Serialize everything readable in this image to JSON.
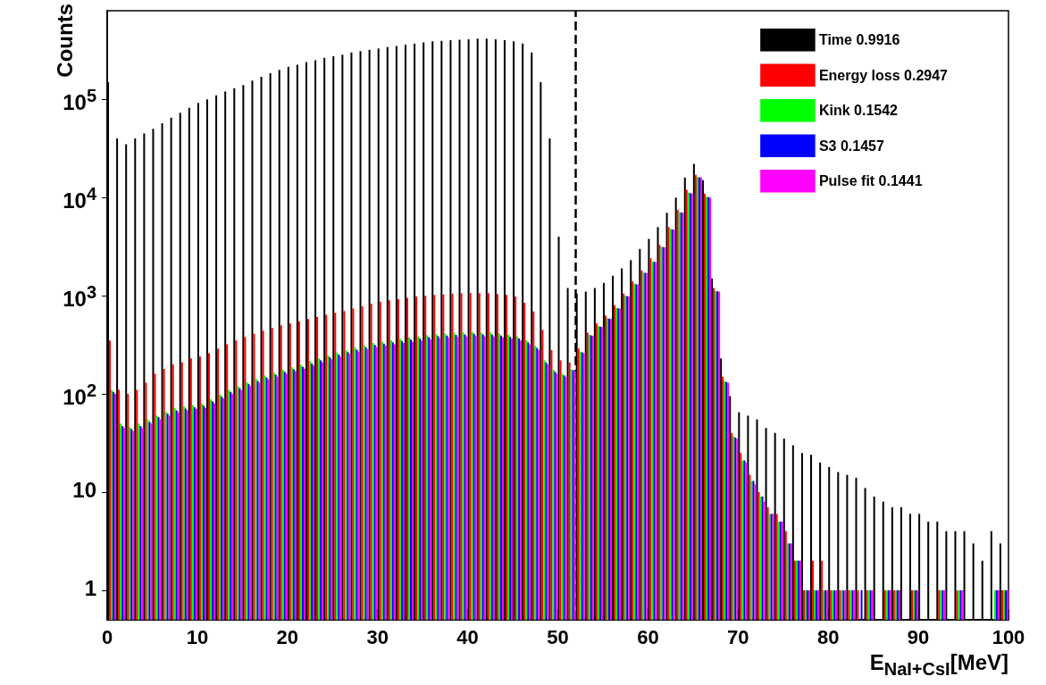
{
  "chart_data": {
    "type": "histogram",
    "xlabel": "E$_{NaI+CsI}$[MeV]",
    "ylabel": "Counts",
    "bins": [
      0,
      1,
      2,
      3,
      4,
      5,
      6,
      7,
      8,
      9,
      10,
      11,
      12,
      13,
      14,
      15,
      16,
      17,
      18,
      19,
      20,
      21,
      22,
      23,
      24,
      25,
      26,
      27,
      28,
      29,
      30,
      31,
      32,
      33,
      34,
      35,
      36,
      37,
      38,
      39,
      40,
      41,
      42,
      43,
      44,
      45,
      46,
      47,
      48,
      49,
      50,
      51,
      52,
      53,
      54,
      55,
      56,
      57,
      58,
      59,
      60,
      61,
      62,
      63,
      64,
      65,
      66,
      67,
      68,
      69,
      70,
      71,
      72,
      73,
      74,
      75,
      76,
      77,
      78,
      79,
      80,
      81,
      82,
      83,
      84,
      85,
      86,
      87,
      88,
      89,
      90,
      91,
      92,
      93,
      94,
      95,
      96,
      97,
      98,
      99,
      100
    ],
    "series": [
      {
        "name": "Time 0.9916",
        "color": "#000000",
        "values": [
          150000,
          40000,
          35000,
          40000,
          45000,
          50000,
          57000,
          65000,
          73000,
          82000,
          92000,
          100000,
          110000,
          120000,
          130000,
          140000,
          155000,
          170000,
          185000,
          200000,
          215000,
          225000,
          240000,
          250000,
          265000,
          275000,
          285000,
          300000,
          310000,
          320000,
          330000,
          340000,
          350000,
          360000,
          370000,
          380000,
          390000,
          395000,
          400000,
          405000,
          410000,
          415000,
          415000,
          410000,
          400000,
          390000,
          370000,
          300000,
          150000,
          40000,
          4000,
          1200,
          1050,
          1100,
          1200,
          1350,
          1600,
          1900,
          2300,
          3000,
          3800,
          5000,
          7000,
          10000,
          16000,
          22000,
          15000,
          1500,
          230,
          95,
          65,
          60,
          55,
          45,
          40,
          35,
          30,
          25,
          24,
          20,
          18,
          16,
          15,
          14,
          11,
          9,
          8,
          7,
          7,
          6,
          6,
          5,
          5,
          4,
          4,
          4,
          3,
          2,
          4,
          3
        ]
      },
      {
        "name": "Energy loss 0.2947",
        "color": "#ff0000",
        "values": [
          350,
          110,
          100,
          110,
          130,
          160,
          180,
          200,
          210,
          230,
          240,
          260,
          290,
          320,
          350,
          380,
          410,
          440,
          470,
          500,
          520,
          550,
          580,
          610,
          640,
          670,
          700,
          740,
          780,
          830,
          870,
          900,
          920,
          950,
          980,
          1000,
          1020,
          1030,
          1050,
          1060,
          1070,
          1060,
          1060,
          1040,
          1020,
          980,
          850,
          690,
          450,
          280,
          220,
          210,
          290,
          420,
          520,
          630,
          800,
          1050,
          1400,
          1800,
          2400,
          3300,
          5000,
          7500,
          12000,
          17000,
          11000,
          1200,
          150,
          40,
          25,
          15,
          10,
          7,
          6,
          4,
          2,
          1,
          2,
          2,
          1,
          1,
          1,
          1,
          1,
          null,
          1,
          1,
          null,
          1,
          null,
          null,
          1,
          null,
          1,
          null,
          null,
          null,
          null,
          1
        ]
      },
      {
        "name": "Kink 0.1542",
        "color": "#00ff00",
        "values": [
          110,
          50,
          46,
          50,
          55,
          60,
          66,
          72,
          75,
          77,
          80,
          88,
          99,
          110,
          121,
          132,
          143,
          154,
          165,
          176,
          187,
          198,
          215,
          230,
          248,
          264,
          280,
          297,
          313,
          330,
          341,
          352,
          363,
          374,
          385,
          396,
          407,
          412,
          418,
          423,
          429,
          423,
          423,
          412,
          401,
          385,
          352,
          308,
          220,
          176,
          160,
          178,
          270,
          400,
          490,
          590,
          750,
          1000,
          1320,
          1730,
          2240,
          3150,
          4800,
          7100,
          11200,
          16300,
          10200,
          1120,
          135,
          37,
          21,
          13,
          9,
          6,
          5,
          3,
          2,
          1,
          1,
          1,
          1,
          1,
          1,
          null,
          1,
          null,
          1,
          1,
          null,
          1,
          null,
          null,
          1,
          null,
          1,
          null,
          null,
          null,
          1,
          1
        ]
      },
      {
        "name": "S3 0.1457",
        "color": "#0000ff",
        "values": [
          105,
          47,
          44,
          47,
          52,
          58,
          63,
          68,
          71,
          73,
          76,
          84,
          94,
          105,
          115,
          126,
          136,
          147,
          157,
          168,
          178,
          189,
          204,
          220,
          236,
          252,
          267,
          283,
          299,
          315,
          325,
          336,
          346,
          357,
          367,
          378,
          388,
          393,
          399,
          404,
          409,
          404,
          404,
          393,
          383,
          367,
          336,
          294,
          210,
          168,
          155,
          174,
          265,
          395,
          485,
          585,
          745,
          990,
          1310,
          1715,
          2220,
          3120,
          4750,
          7050,
          11100,
          16100,
          10100,
          1110,
          132,
          36,
          21,
          13,
          9,
          6,
          5,
          3,
          2,
          1,
          1,
          1,
          1,
          1,
          1,
          1,
          1,
          null,
          1,
          1,
          null,
          1,
          null,
          null,
          1,
          null,
          1,
          null,
          null,
          null,
          1,
          1
        ]
      },
      {
        "name": "Pulse fit 0.1441",
        "color": "#ff00ff",
        "values": [
          100,
          45,
          42,
          45,
          50,
          55,
          60,
          65,
          68,
          70,
          72,
          80,
          90,
          100,
          110,
          120,
          130,
          140,
          150,
          160,
          170,
          180,
          195,
          210,
          225,
          240,
          255,
          270,
          285,
          300,
          310,
          320,
          330,
          340,
          350,
          360,
          370,
          375,
          380,
          385,
          390,
          385,
          385,
          375,
          365,
          350,
          320,
          280,
          200,
          160,
          150,
          170,
          260,
          390,
          480,
          580,
          740,
          980,
          1300,
          1700,
          2200,
          3100,
          4700,
          7000,
          11000,
          16000,
          10000,
          1100,
          130,
          35,
          20,
          12,
          8,
          6,
          5,
          3,
          2,
          1,
          1,
          1,
          1,
          1,
          1,
          null,
          1,
          null,
          1,
          1,
          null,
          1,
          null,
          null,
          1,
          null,
          1,
          null,
          null,
          null,
          1,
          1
        ]
      }
    ],
    "xlim": [
      0,
      100
    ],
    "xticks": [
      0,
      10,
      20,
      30,
      40,
      50,
      60,
      70,
      80,
      90,
      100
    ],
    "ylim": [
      0.5,
      800000
    ],
    "log": "y",
    "yticks": [
      1,
      10,
      {
        "value": 100,
        "label": "10$^{2}$"
      },
      {
        "value": 1000,
        "label": "10$^{3}$"
      },
      {
        "value": 10000,
        "label": "10$^{4}$"
      },
      {
        "value": 100000,
        "label": "10$^{5}$"
      }
    ],
    "ref_lines": [
      {
        "axis": "x",
        "value": 52,
        "color": "#000000",
        "line_style": "dashed"
      }
    ],
    "grid": false,
    "legend": "top right"
  }
}
